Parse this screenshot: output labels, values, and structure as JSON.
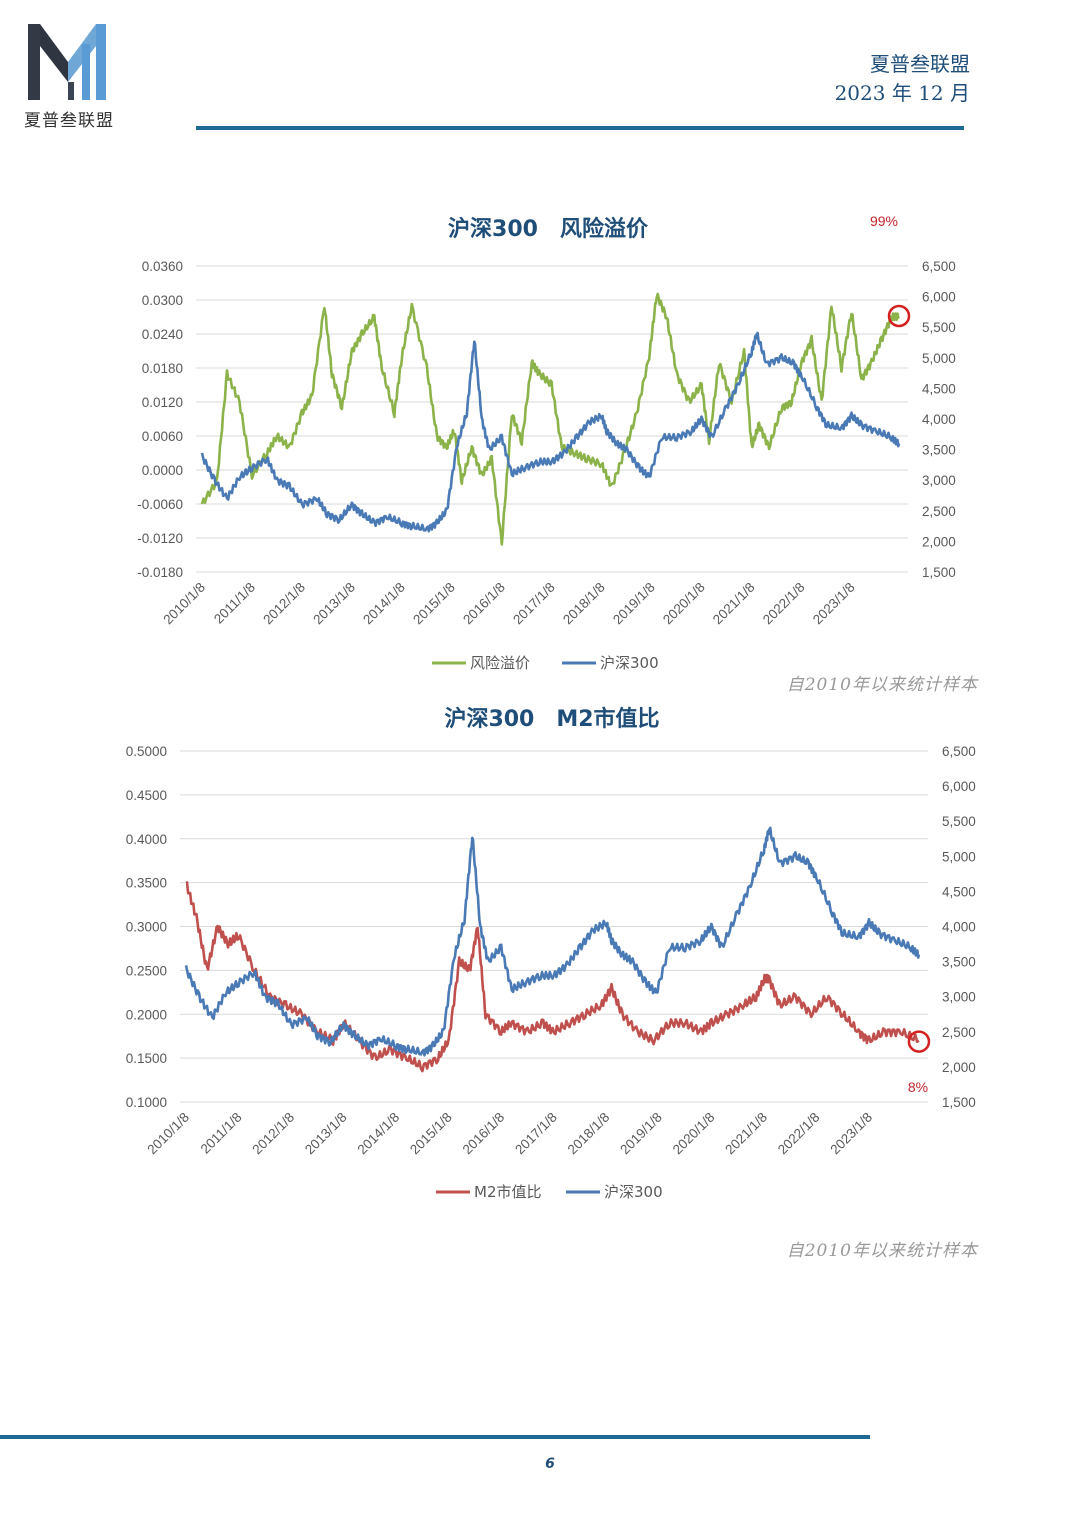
{
  "header": {
    "brand": "夏普叁联盟",
    "date": "2023 年 12 月",
    "logo_text": "夏普叁联盟"
  },
  "colors": {
    "green": "#8cb24a",
    "blue": "#4a7ab5",
    "red": "#c0504d",
    "accent_rule": "#1f6a94",
    "title": "#1f4e79"
  },
  "chart_data": [
    {
      "type": "line",
      "title": "沪深300　风险溢价",
      "annotation": "99%",
      "note": "自2010年以来统计样本",
      "x_ticks": [
        "2010/1/8",
        "2011/1/8",
        "2012/1/8",
        "2013/1/8",
        "2014/1/8",
        "2015/1/8",
        "2016/1/8",
        "2017/1/8",
        "2018/1/8",
        "2019/1/8",
        "2020/1/8",
        "2021/1/8",
        "2022/1/8",
        "2023/1/8"
      ],
      "y_left": {
        "min": -0.018,
        "max": 0.036,
        "ticks": [
          "0.0360",
          "0.0300",
          "0.0240",
          "0.0180",
          "0.0120",
          "0.0060",
          "0.0000",
          "-0.0060",
          "-0.0120",
          "-0.0180"
        ]
      },
      "y_right": {
        "min": 1500,
        "max": 6500,
        "ticks": [
          "6,500",
          "6,000",
          "5,500",
          "5,000",
          "4,500",
          "4,000",
          "3,500",
          "3,000",
          "2,500",
          "2,000",
          "1,500"
        ]
      },
      "legend": [
        "风险溢价",
        "沪深300"
      ],
      "series": [
        {
          "name": "风险溢价",
          "axis": "left",
          "x": [
            2010.0,
            2010.3,
            2010.5,
            2010.75,
            2011.0,
            2011.3,
            2011.5,
            2011.75,
            2012.0,
            2012.2,
            2012.45,
            2012.6,
            2012.8,
            2013.0,
            2013.2,
            2013.45,
            2013.6,
            2013.85,
            2014.0,
            2014.2,
            2014.5,
            2014.7,
            2014.9,
            2015.05,
            2015.2,
            2015.4,
            2015.6,
            2015.8,
            2016.0,
            2016.2,
            2016.4,
            2016.6,
            2016.75,
            2017.0,
            2017.2,
            2017.45,
            2017.7,
            2018.0,
            2018.2,
            2018.45,
            2018.7,
            2018.95,
            2019.1,
            2019.3,
            2019.5,
            2019.75,
            2020.0,
            2020.15,
            2020.35,
            2020.6,
            2020.85,
            2021.0,
            2021.15,
            2021.35,
            2021.6,
            2021.8,
            2022.0,
            2022.2,
            2022.4,
            2022.6,
            2022.8,
            2023.0,
            2023.2,
            2023.4,
            2023.6,
            2023.8,
            2023.95
          ],
          "values": [
            -0.006,
            -0.002,
            0.017,
            0.012,
            -0.001,
            0.003,
            0.006,
            0.004,
            0.01,
            0.013,
            0.029,
            0.017,
            0.011,
            0.021,
            0.024,
            0.027,
            0.018,
            0.01,
            0.02,
            0.029,
            0.018,
            0.006,
            0.004,
            0.007,
            -0.002,
            0.004,
            -0.001,
            0.002,
            -0.013,
            0.01,
            0.005,
            0.019,
            0.017,
            0.015,
            0.004,
            0.003,
            0.002,
            0.001,
            -0.003,
            0.003,
            0.01,
            0.02,
            0.031,
            0.027,
            0.017,
            0.012,
            0.015,
            0.005,
            0.019,
            0.012,
            0.021,
            0.004,
            0.008,
            0.004,
            0.011,
            0.012,
            0.019,
            0.023,
            0.012,
            0.029,
            0.018,
            0.028,
            0.016,
            0.019,
            0.023,
            0.027,
            0.027
          ]
        },
        {
          "name": "沪深300",
          "axis": "right",
          "x": [
            2010.0,
            2010.25,
            2010.5,
            2010.75,
            2011.0,
            2011.3,
            2011.5,
            2011.75,
            2012.0,
            2012.3,
            2012.5,
            2012.75,
            2013.0,
            2013.2,
            2013.45,
            2013.7,
            2014.0,
            2014.2,
            2014.5,
            2014.7,
            2014.9,
            2015.1,
            2015.3,
            2015.45,
            2015.6,
            2015.75,
            2016.0,
            2016.2,
            2016.45,
            2016.75,
            2017.0,
            2017.25,
            2017.5,
            2017.75,
            2018.0,
            2018.1,
            2018.3,
            2018.5,
            2018.75,
            2018.95,
            2019.2,
            2019.5,
            2019.8,
            2020.0,
            2020.2,
            2020.5,
            2020.75,
            2021.0,
            2021.1,
            2021.3,
            2021.6,
            2021.85,
            2022.0,
            2022.3,
            2022.5,
            2022.8,
            2023.0,
            2023.2,
            2023.5,
            2023.8,
            2023.95
          ],
          "values": [
            3400,
            3000,
            2700,
            3050,
            3200,
            3350,
            3000,
            2900,
            2600,
            2700,
            2450,
            2350,
            2600,
            2450,
            2300,
            2400,
            2300,
            2250,
            2200,
            2300,
            2500,
            3550,
            4100,
            5300,
            4000,
            3500,
            3700,
            3100,
            3200,
            3300,
            3300,
            3450,
            3700,
            3950,
            4050,
            3800,
            3600,
            3500,
            3200,
            3050,
            3700,
            3700,
            3800,
            4000,
            3700,
            4200,
            4600,
            5100,
            5400,
            4900,
            5000,
            4900,
            4700,
            4200,
            3900,
            3850,
            4050,
            3900,
            3800,
            3700,
            3600
          ]
        }
      ]
    },
    {
      "type": "line",
      "title": "沪深300　M2市值比",
      "annotation": "8%",
      "note": "自2010年以来统计样本",
      "x_ticks": [
        "2010/1/8",
        "2011/1/8",
        "2012/1/8",
        "2013/1/8",
        "2014/1/8",
        "2015/1/8",
        "2016/1/8",
        "2017/1/8",
        "2018/1/8",
        "2019/1/8",
        "2020/1/8",
        "2021/1/8",
        "2022/1/8",
        "2023/1/8"
      ],
      "y_left": {
        "min": 0.1,
        "max": 0.5,
        "ticks": [
          "0.5000",
          "0.4500",
          "0.4000",
          "0.3500",
          "0.3000",
          "0.2500",
          "0.2000",
          "0.1500",
          "0.1000"
        ]
      },
      "y_right": {
        "min": 1500,
        "max": 6500,
        "ticks": [
          "6,500",
          "6,000",
          "5,500",
          "5,000",
          "4,500",
          "4,000",
          "3,500",
          "3,000",
          "2,500",
          "2,000",
          "1,500"
        ]
      },
      "legend": [
        "M2市值比",
        "沪深300"
      ],
      "series": [
        {
          "name": "M2市值比",
          "axis": "left",
          "x": [
            2010.0,
            2010.2,
            2010.4,
            2010.6,
            2010.8,
            2011.0,
            2011.3,
            2011.6,
            2011.9,
            2012.2,
            2012.5,
            2012.8,
            2013.0,
            2013.3,
            2013.6,
            2013.9,
            2014.2,
            2014.5,
            2014.8,
            2015.0,
            2015.2,
            2015.4,
            2015.55,
            2015.7,
            2016.0,
            2016.2,
            2016.5,
            2016.8,
            2017.0,
            2017.3,
            2017.6,
            2017.9,
            2018.1,
            2018.3,
            2018.6,
            2018.9,
            2019.2,
            2019.5,
            2019.8,
            2020.0,
            2020.3,
            2020.6,
            2020.85,
            2021.0,
            2021.1,
            2021.3,
            2021.6,
            2021.9,
            2022.2,
            2022.5,
            2022.8,
            2023.0,
            2023.3,
            2023.6,
            2023.95
          ],
          "values": [
            0.35,
            0.31,
            0.25,
            0.3,
            0.28,
            0.29,
            0.25,
            0.22,
            0.21,
            0.2,
            0.18,
            0.17,
            0.19,
            0.17,
            0.15,
            0.16,
            0.15,
            0.14,
            0.15,
            0.17,
            0.26,
            0.25,
            0.3,
            0.2,
            0.18,
            0.19,
            0.18,
            0.19,
            0.18,
            0.19,
            0.2,
            0.21,
            0.23,
            0.2,
            0.18,
            0.17,
            0.19,
            0.19,
            0.18,
            0.19,
            0.2,
            0.21,
            0.22,
            0.24,
            0.24,
            0.21,
            0.22,
            0.2,
            0.22,
            0.2,
            0.18,
            0.17,
            0.18,
            0.18,
            0.17
          ]
        },
        {
          "name": "沪深300",
          "axis": "right",
          "x": [
            2010.0,
            2010.25,
            2010.5,
            2010.75,
            2011.0,
            2011.3,
            2011.5,
            2011.75,
            2012.0,
            2012.3,
            2012.5,
            2012.75,
            2013.0,
            2013.2,
            2013.45,
            2013.7,
            2014.0,
            2014.2,
            2014.5,
            2014.7,
            2014.9,
            2015.1,
            2015.3,
            2015.45,
            2015.6,
            2015.75,
            2016.0,
            2016.2,
            2016.45,
            2016.75,
            2017.0,
            2017.25,
            2017.5,
            2017.75,
            2018.0,
            2018.1,
            2018.3,
            2018.5,
            2018.75,
            2018.95,
            2019.2,
            2019.5,
            2019.8,
            2020.0,
            2020.2,
            2020.5,
            2020.75,
            2021.0,
            2021.1,
            2021.3,
            2021.6,
            2021.85,
            2022.0,
            2022.3,
            2022.5,
            2022.8,
            2023.0,
            2023.2,
            2023.5,
            2023.8,
            2023.95
          ],
          "values": [
            3400,
            3000,
            2700,
            3050,
            3200,
            3350,
            3000,
            2900,
            2600,
            2700,
            2450,
            2350,
            2600,
            2450,
            2300,
            2400,
            2300,
            2250,
            2200,
            2300,
            2500,
            3550,
            4100,
            5300,
            4000,
            3500,
            3700,
            3100,
            3200,
            3300,
            3300,
            3450,
            3700,
            3950,
            4050,
            3800,
            3600,
            3500,
            3200,
            3050,
            3700,
            3700,
            3800,
            4000,
            3700,
            4200,
            4600,
            5100,
            5400,
            4900,
            5000,
            4900,
            4700,
            4200,
            3900,
            3850,
            4050,
            3900,
            3800,
            3700,
            3600
          ]
        }
      ]
    }
  ],
  "footer": {
    "page_number": "6"
  }
}
